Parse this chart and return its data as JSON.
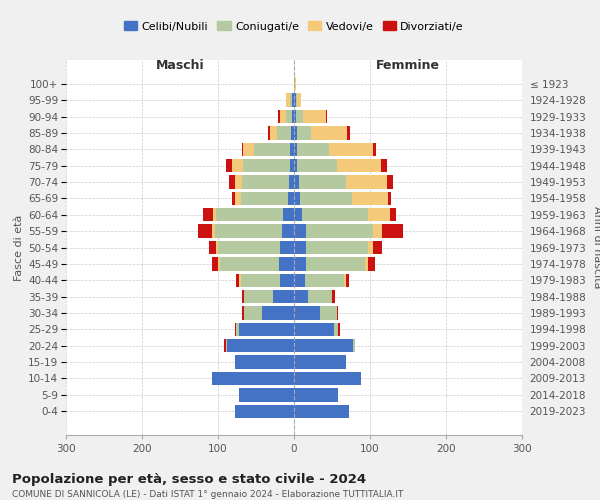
{
  "age_groups": [
    "0-4",
    "5-9",
    "10-14",
    "15-19",
    "20-24",
    "25-29",
    "30-34",
    "35-39",
    "40-44",
    "45-49",
    "50-54",
    "55-59",
    "60-64",
    "65-69",
    "70-74",
    "75-79",
    "80-84",
    "85-89",
    "90-94",
    "95-99",
    "100+"
  ],
  "birth_years": [
    "2019-2023",
    "2014-2018",
    "2009-2013",
    "2004-2008",
    "1999-2003",
    "1994-1998",
    "1989-1993",
    "1984-1988",
    "1979-1983",
    "1974-1978",
    "1969-1973",
    "1964-1968",
    "1959-1963",
    "1954-1958",
    "1949-1953",
    "1944-1948",
    "1939-1943",
    "1934-1938",
    "1929-1933",
    "1924-1928",
    "≤ 1923"
  ],
  "male": {
    "celibi": [
      78,
      72,
      108,
      78,
      88,
      72,
      42,
      28,
      18,
      20,
      18,
      16,
      14,
      8,
      6,
      5,
      5,
      4,
      2,
      2,
      0
    ],
    "coniugati": [
      0,
      0,
      0,
      0,
      2,
      4,
      24,
      38,
      52,
      78,
      82,
      88,
      88,
      62,
      62,
      62,
      48,
      18,
      8,
      3,
      0
    ],
    "vedovi": [
      0,
      0,
      0,
      0,
      0,
      0,
      0,
      0,
      2,
      2,
      2,
      4,
      4,
      8,
      10,
      14,
      14,
      10,
      8,
      5,
      0
    ],
    "divorziati": [
      0,
      0,
      0,
      0,
      2,
      2,
      2,
      2,
      4,
      8,
      10,
      18,
      14,
      4,
      8,
      8,
      2,
      2,
      3,
      0,
      0
    ]
  },
  "female": {
    "nubili": [
      72,
      58,
      88,
      68,
      78,
      52,
      34,
      18,
      14,
      16,
      16,
      16,
      10,
      8,
      6,
      4,
      4,
      4,
      2,
      2,
      0
    ],
    "coniugate": [
      0,
      0,
      0,
      0,
      2,
      6,
      22,
      32,
      52,
      78,
      82,
      88,
      88,
      68,
      62,
      52,
      42,
      18,
      10,
      2,
      0
    ],
    "vedove": [
      0,
      0,
      0,
      0,
      0,
      0,
      0,
      0,
      2,
      4,
      6,
      12,
      28,
      48,
      54,
      58,
      58,
      48,
      30,
      5,
      2
    ],
    "divorziate": [
      0,
      0,
      0,
      0,
      0,
      2,
      2,
      4,
      4,
      8,
      12,
      28,
      8,
      4,
      8,
      8,
      4,
      4,
      2,
      0,
      0
    ]
  },
  "colors": {
    "celibi": "#4472c4",
    "coniugati": "#b5c9a0",
    "vedovi": "#f5c97a",
    "divorziati": "#cc1111"
  },
  "legend_labels": [
    "Celibi/Nubili",
    "Coniugati/e",
    "Vedovi/e",
    "Divorziati/e"
  ],
  "title": "Popolazione per età, sesso e stato civile - 2024",
  "subtitle": "COMUNE DI SANNICOLA (LE) - Dati ISTAT 1° gennaio 2024 - Elaborazione TUTTITALIA.IT",
  "xlabel_left": "Maschi",
  "xlabel_right": "Femmine",
  "ylabel_left": "Fasce di età",
  "ylabel_right": "Anni di nascita",
  "xlim": 300,
  "bg_color": "#f0f0f0",
  "plot_bg": "#ffffff"
}
